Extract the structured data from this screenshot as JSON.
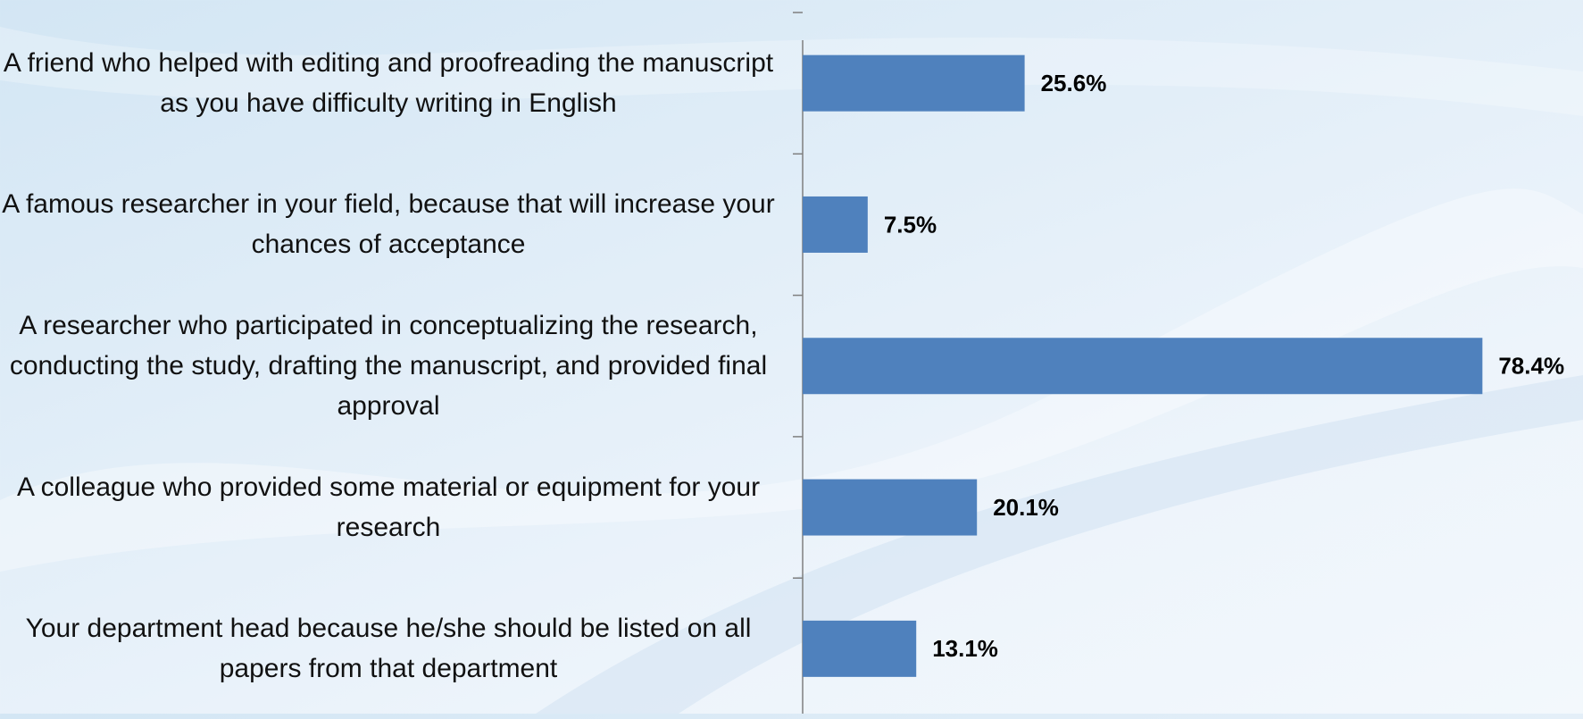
{
  "chart_data": {
    "type": "bar",
    "orientation": "horizontal",
    "categories": [
      "A friend who helped with editing and proofreading the manuscript as you have difficulty writing in English",
      "A famous researcher in your field, because that will increase your chances of acceptance",
      "A researcher who participated in conceptualizing the research, conducting the study, drafting the manuscript, and provided final approval",
      "A colleague who provided some material or equipment for your research",
      "Your department head because he/she should be listed on all papers from that department"
    ],
    "values": [
      25.6,
      7.5,
      78.4,
      20.1,
      13.1
    ],
    "value_labels": [
      "25.6%",
      "7.5%",
      "78.4%",
      "20.1%",
      "13.1%"
    ],
    "color": "#4f81bd",
    "xlim": [
      0,
      90
    ]
  }
}
